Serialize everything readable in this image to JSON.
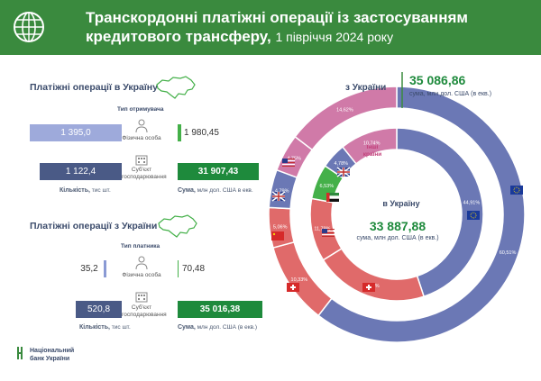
{
  "header": {
    "title": "Транскордонні платіжні операції із застосуванням кредитового трансферу,",
    "subtitle": "1 півріччя 2024 року"
  },
  "to_ukraine": {
    "section_title": "Платіжні операції в Україну",
    "type_label": "Тип отримувача",
    "individual_label": "Фізична особа",
    "business_label": "Суб'єкт господарювання",
    "individual_count": "1 395,0",
    "individual_sum": "1 980,45",
    "business_count": "1 122,4",
    "business_sum": "31 907,43",
    "count_caption_bold": "Кількість,",
    "count_caption_rest": " тис шт.",
    "sum_caption_bold": "Сума,",
    "sum_caption_rest": " млн дол. США в екв."
  },
  "from_ukraine": {
    "section_title": "Платіжні операції з України",
    "type_label": "Тип платника",
    "individual_label": "Фізична особа",
    "business_label": "Суб'єкт господарювання",
    "individual_count": "35,2",
    "individual_sum": "70,48",
    "business_count": "520,8",
    "business_sum": "35 016,38",
    "count_caption_bold": "Кількість,",
    "count_caption_rest": " тис шт.",
    "sum_caption_bold": "Сума,",
    "sum_caption_rest": " млн дол. США (в екв.)"
  },
  "logo": {
    "line1": "Національний",
    "line2": "банк України"
  },
  "chart_data": [
    {
      "type": "pie",
      "title": "з України",
      "total": "35 086,86",
      "total_unit": "сума, млн дол. США (в екв.)",
      "slices": [
        {
          "label": "EU",
          "value": 60.51,
          "text": "60,51%",
          "color": "#6b78b5"
        },
        {
          "label": "CH",
          "value": 10.33,
          "text": "10,33%",
          "color": "#e06a6a"
        },
        {
          "label": "CN",
          "value": 5.06,
          "text": "5,06%",
          "color": "#e06a6a"
        },
        {
          "label": "GB",
          "value": 4.79,
          "text": "4,79%",
          "color": "#6b78b5"
        },
        {
          "label": "US",
          "value": 4.75,
          "text": "4,75%",
          "color": "#d07aa8"
        },
        {
          "label": "Інші країни",
          "value": 14.62,
          "text": "14,62%",
          "color": "#d07aa8"
        }
      ]
    },
    {
      "type": "pie",
      "title": "в Україну",
      "total": "33 887,88",
      "total_unit": "сума, млн дол. США (в екв.)",
      "slices": [
        {
          "label": "EU",
          "value": 44.91,
          "text": "44,91%",
          "color": "#6b78b5"
        },
        {
          "label": "CH",
          "value": 21.22,
          "text": "21,22%",
          "color": "#e06a6a"
        },
        {
          "label": "US",
          "value": 11.79,
          "text": "11,79%",
          "color": "#e06a6a"
        },
        {
          "label": "AE",
          "value": 6.53,
          "text": "6,53%",
          "color": "#44b049"
        },
        {
          "label": "GB",
          "value": 4.78,
          "text": "4,78%",
          "color": "#6b78b5"
        },
        {
          "label": "Інші країни",
          "value": 10.74,
          "text": "10,74%",
          "color": "#d07aa8"
        }
      ]
    }
  ],
  "other_label": "Інші\nкраїни"
}
